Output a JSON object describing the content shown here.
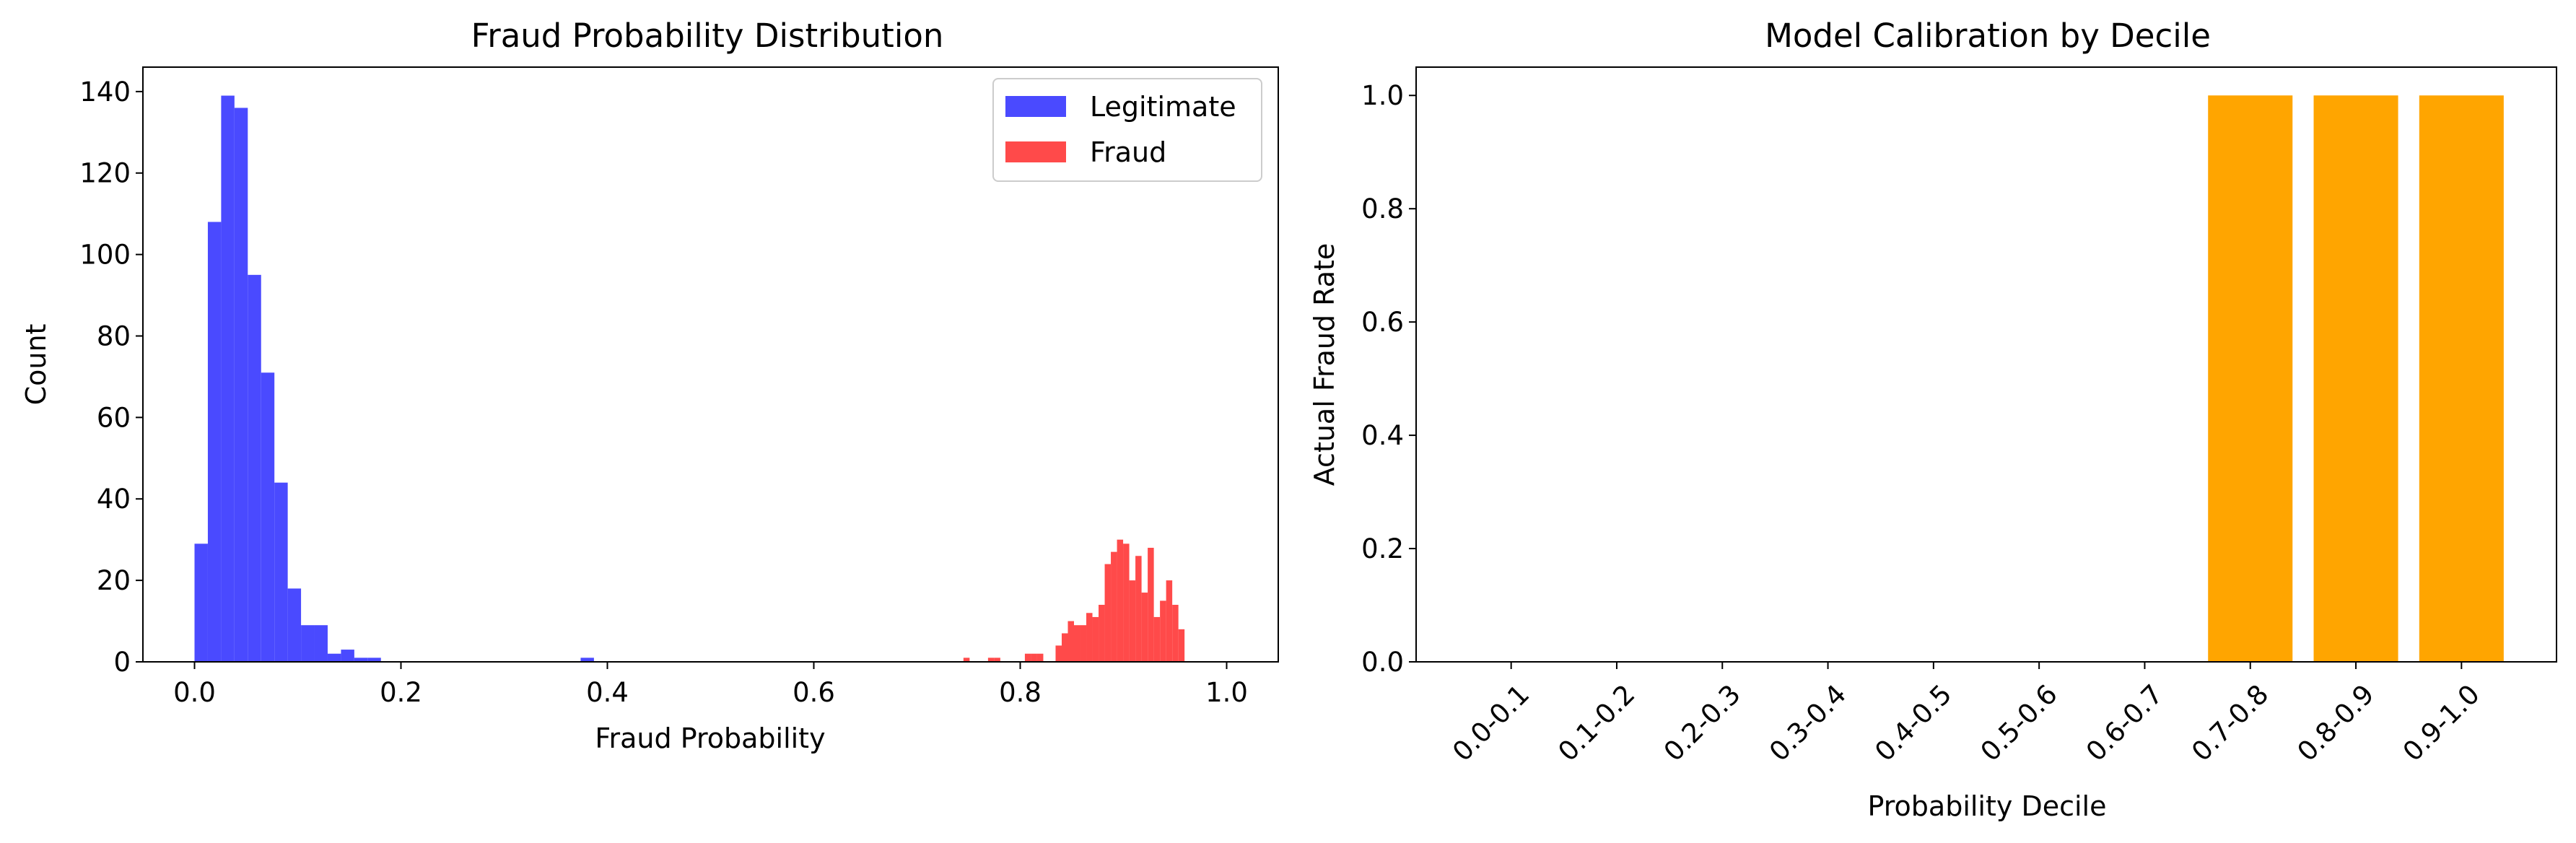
{
  "colors": {
    "legitimate": "#4a4aff",
    "fraud": "#ff4a4a",
    "calibration_bar": "#ffa500",
    "axes": "#000000",
    "legend_border": "#cccccc"
  },
  "chart_data": [
    {
      "type": "histogram",
      "title": "Fraud Probability Distribution",
      "xlabel": "Fraud Probability",
      "ylabel": "Count",
      "xlim": [
        -0.05,
        1.05
      ],
      "ylim": [
        0,
        146
      ],
      "xticks": [
        0.0,
        0.2,
        0.4,
        0.6,
        0.8,
        1.0
      ],
      "xtick_labels": [
        "0.0",
        "0.2",
        "0.4",
        "0.6",
        "0.8",
        "1.0"
      ],
      "yticks": [
        0,
        20,
        40,
        60,
        80,
        100,
        120,
        140
      ],
      "ytick_labels": [
        "0",
        "20",
        "40",
        "60",
        "80",
        "100",
        "120",
        "140"
      ],
      "grid": false,
      "legend_position": "top-right",
      "series": [
        {
          "name": "Legitimate",
          "color": "#4a4aff",
          "opacity": 1,
          "bin_start": 0.0,
          "bin_width": 0.0129,
          "counts": [
            29,
            108,
            139,
            136,
            95,
            71,
            44,
            18,
            9,
            9,
            2,
            3,
            1,
            1,
            0,
            0,
            0,
            0,
            0,
            0,
            0,
            0,
            0,
            0,
            0,
            0,
            0,
            0,
            0,
            1
          ]
        },
        {
          "name": "Fraud",
          "color": "#ff4a4a",
          "opacity": 1,
          "bin_start": 0.745,
          "bin_width": 0.00595,
          "counts": [
            1,
            0,
            0,
            0,
            1,
            1,
            0,
            0,
            0,
            0,
            2,
            2,
            2,
            0,
            0,
            4,
            7,
            10,
            9,
            9,
            12,
            11,
            14,
            24,
            27,
            30,
            29,
            20,
            26,
            17,
            28,
            11,
            15,
            20,
            14,
            8
          ]
        }
      ]
    },
    {
      "type": "bar",
      "title": "Model Calibration by Decile",
      "xlabel": "Probability Decile",
      "ylabel": "Actual Fraud Rate",
      "categories": [
        "0.0-0.1",
        "0.1-0.2",
        "0.2-0.3",
        "0.3-0.4",
        "0.4-0.5",
        "0.5-0.6",
        "0.6-0.7",
        "0.7-0.8",
        "0.8-0.9",
        "0.9-1.0"
      ],
      "values": [
        0,
        0,
        0,
        0,
        0,
        0,
        0,
        1.0,
        1.0,
        1.0
      ],
      "ylim": [
        0,
        1.05
      ],
      "yticks": [
        0.0,
        0.2,
        0.4,
        0.6,
        0.8,
        1.0
      ],
      "ytick_labels": [
        "0.0",
        "0.2",
        "0.4",
        "0.6",
        "0.8",
        "1.0"
      ],
      "xtick_rotation_deg": 45,
      "grid": false,
      "color": "#ffa500"
    }
  ]
}
